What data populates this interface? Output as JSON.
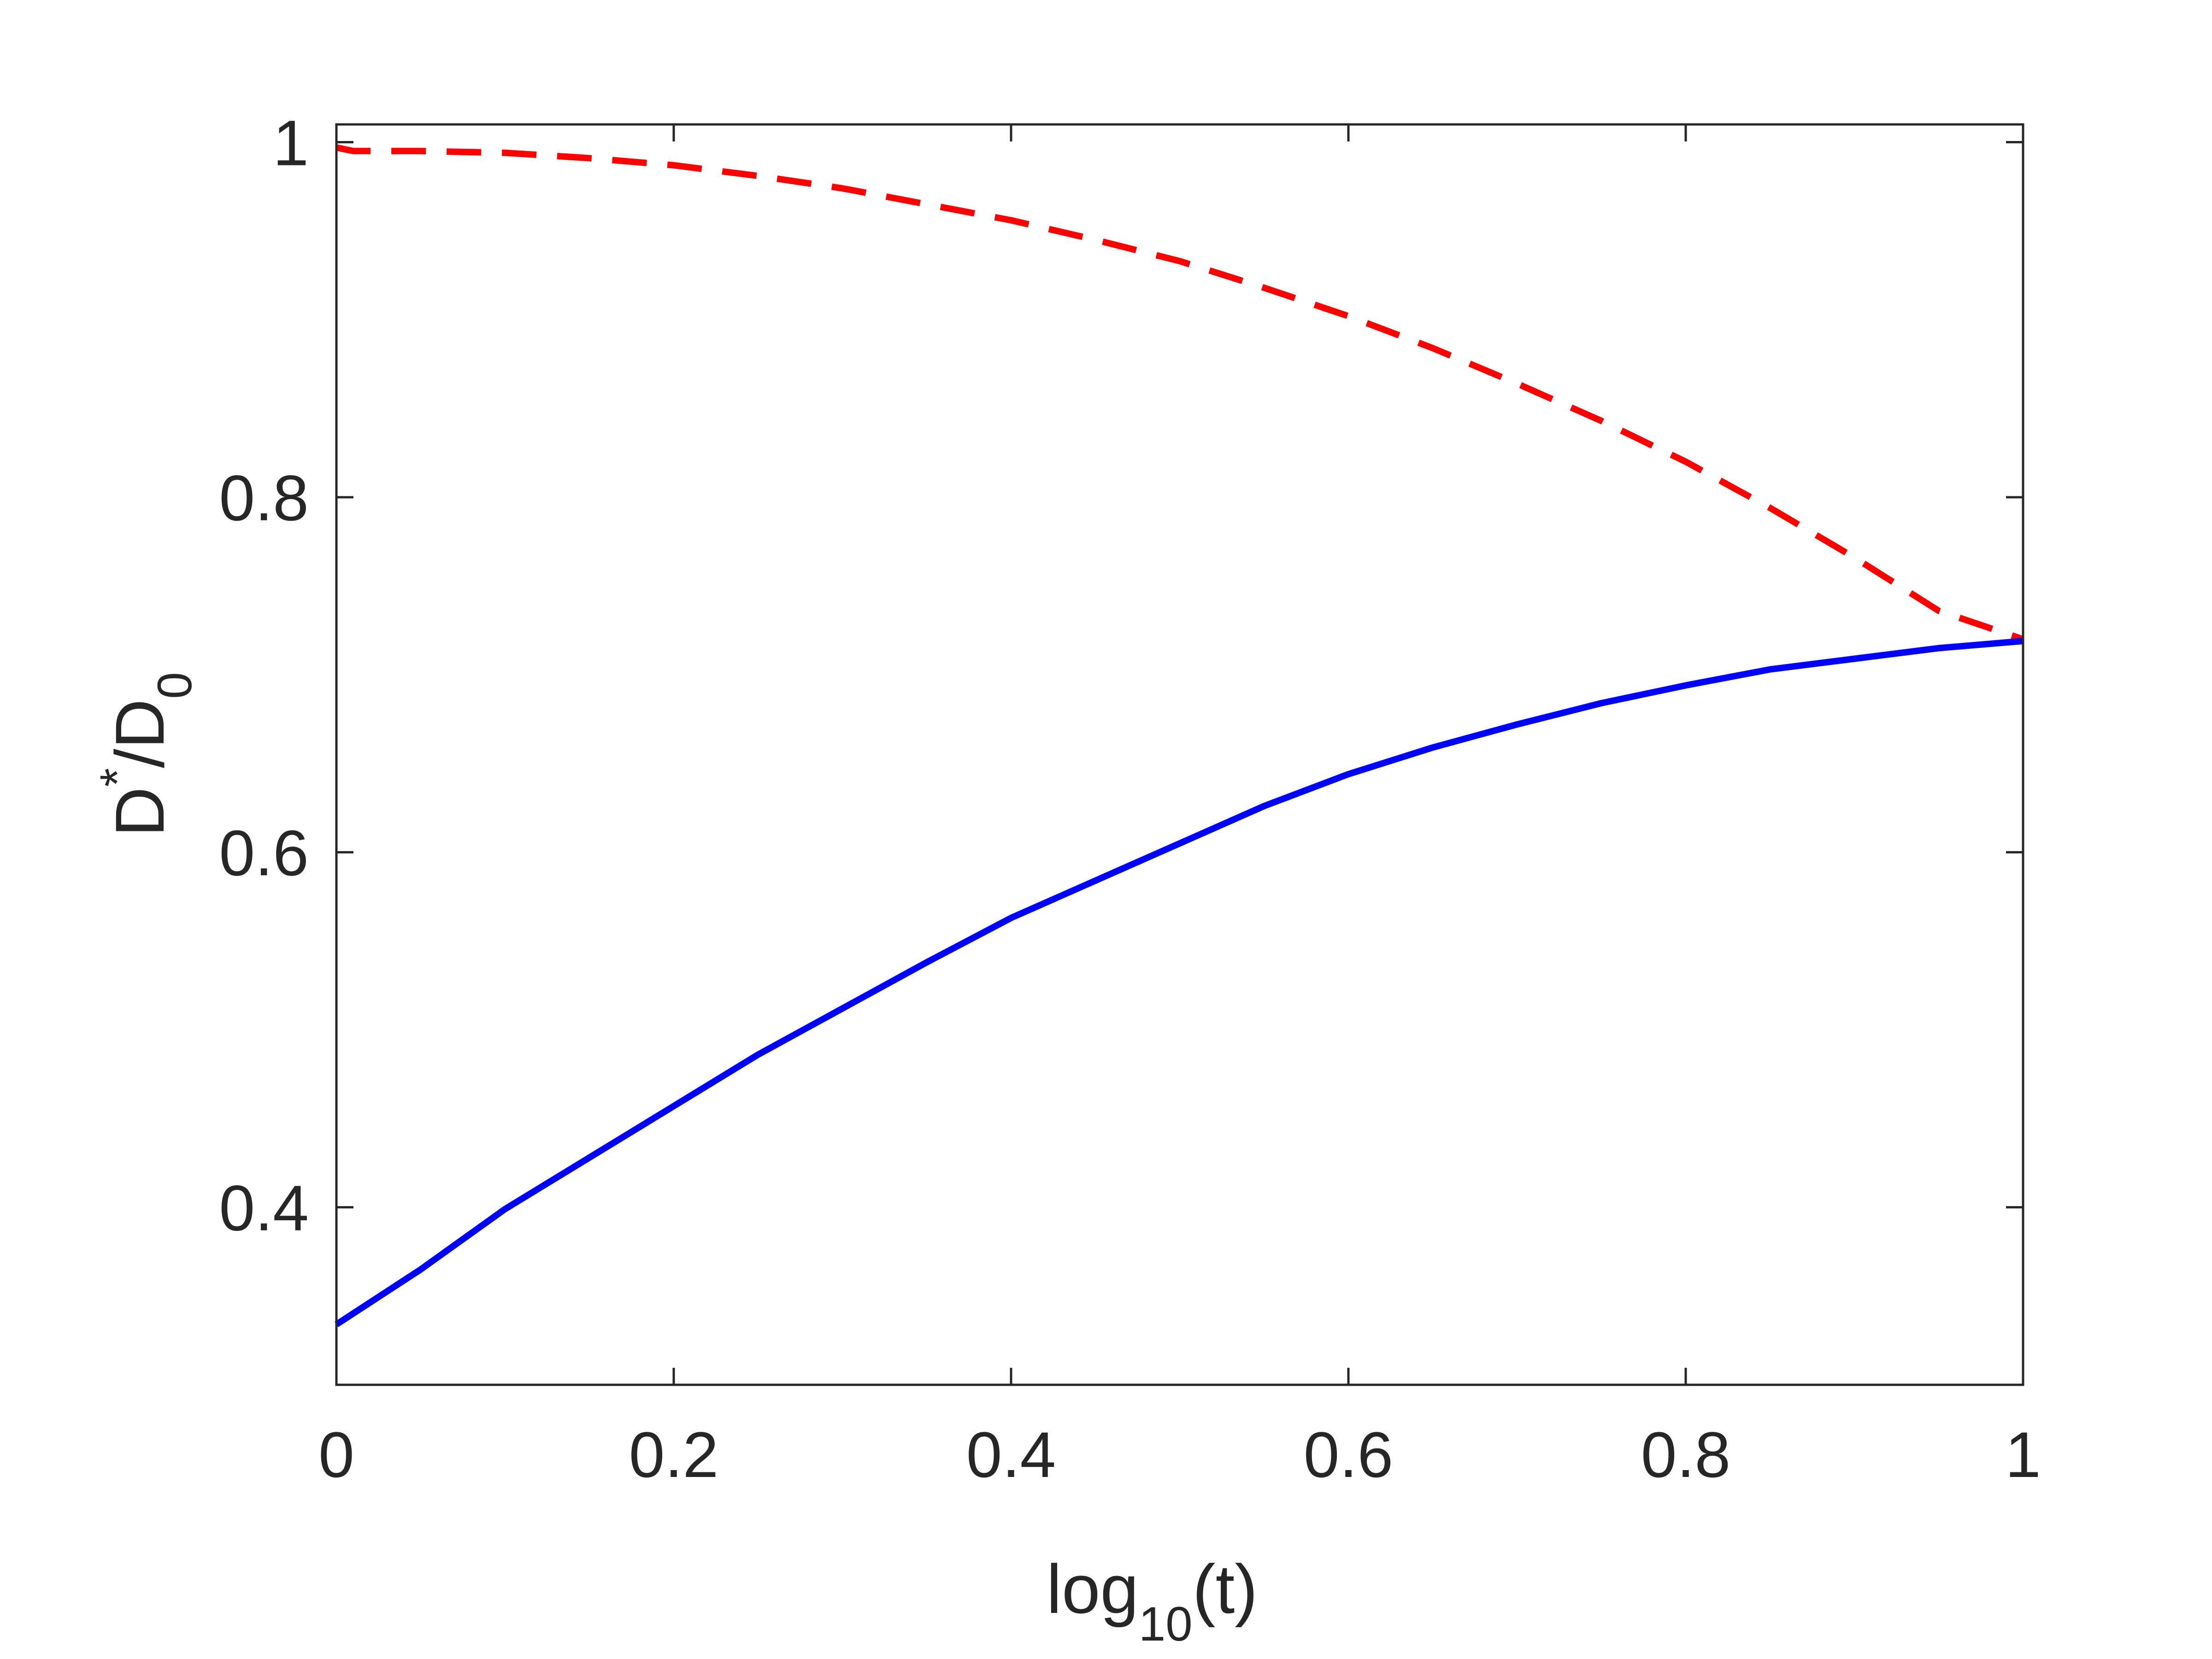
{
  "chart_data": {
    "type": "line",
    "xlabel": {
      "main": "log",
      "sub": "10",
      "tail": "(t)"
    },
    "ylabel": {
      "main": "D",
      "sup": "*",
      "mid": "/D",
      "sub": "0"
    },
    "xlim": [
      0,
      1
    ],
    "ylim": [
      0.3,
      1.01
    ],
    "xticks": [
      {
        "value": 0,
        "label": "0"
      },
      {
        "value": 0.2,
        "label": "0.2"
      },
      {
        "value": 0.4,
        "label": "0.4"
      },
      {
        "value": 0.6,
        "label": "0.6"
      },
      {
        "value": 0.8,
        "label": "0.8"
      },
      {
        "value": 1,
        "label": "1"
      }
    ],
    "yticks": [
      {
        "value": 0.4,
        "label": "0.4"
      },
      {
        "value": 0.6,
        "label": "0.6"
      },
      {
        "value": 0.8,
        "label": "0.8"
      },
      {
        "value": 1,
        "label": "1"
      }
    ],
    "grid": false,
    "box": true,
    "series": [
      {
        "color": "#ff0000",
        "dash": "dashed",
        "x": [
          0,
          0.01,
          0.05,
          0.1,
          0.15,
          0.2,
          0.25,
          0.3,
          0.35,
          0.4,
          0.45,
          0.5,
          0.55,
          0.6,
          0.65,
          0.7,
          0.75,
          0.8,
          0.85,
          0.9,
          0.95,
          1.0
        ],
        "y": [
          0.997,
          0.995,
          0.995,
          0.994,
          0.991,
          0.987,
          0.981,
          0.974,
          0.965,
          0.956,
          0.945,
          0.933,
          0.918,
          0.902,
          0.884,
          0.864,
          0.843,
          0.82,
          0.794,
          0.766,
          0.736,
          0.72
        ]
      },
      {
        "color": "#0000ff",
        "dash": "solid",
        "x": [
          0,
          0.05,
          0.1,
          0.15,
          0.2,
          0.25,
          0.3,
          0.35,
          0.4,
          0.45,
          0.5,
          0.55,
          0.6,
          0.65,
          0.7,
          0.75,
          0.8,
          0.85,
          0.9,
          0.95,
          1.0
        ],
        "y": [
          0.334,
          0.365,
          0.399,
          0.428,
          0.457,
          0.486,
          0.512,
          0.538,
          0.563,
          0.584,
          0.605,
          0.626,
          0.644,
          0.659,
          0.672,
          0.684,
          0.694,
          0.703,
          0.709,
          0.715,
          0.719
        ]
      }
    ]
  }
}
